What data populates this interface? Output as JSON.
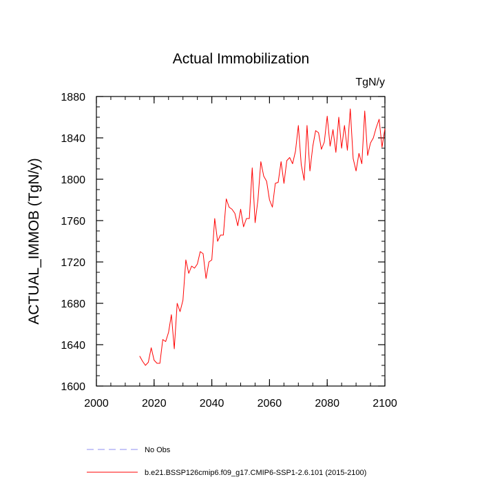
{
  "chart_data": {
    "type": "line",
    "title": "Actual Immobilization",
    "units_label": "TgN/y",
    "xlabel": "",
    "ylabel": "ACTUAL_IMMOB  (TgN/y)",
    "xlim": [
      2000,
      2100
    ],
    "ylim": [
      1600,
      1880
    ],
    "x_ticks": [
      2000,
      2020,
      2040,
      2060,
      2080,
      2100
    ],
    "y_ticks": [
      1600,
      1640,
      1680,
      1720,
      1760,
      1800,
      1840,
      1880
    ],
    "x_minor_step": 5,
    "y_minor_step": 10,
    "grid": false,
    "legend_position": "bottom-left",
    "series": [
      {
        "name": "b.e21.BSSP126cmip6.f09_g17.CMIP6-SSP1-2.6.101 (2015-2100)",
        "color": "#ff0000",
        "dash": "solid",
        "x": [
          2015,
          2016,
          2017,
          2018,
          2019,
          2020,
          2021,
          2022,
          2023,
          2024,
          2025,
          2026,
          2027,
          2028,
          2029,
          2030,
          2031,
          2032,
          2033,
          2034,
          2035,
          2036,
          2037,
          2038,
          2039,
          2040,
          2041,
          2042,
          2043,
          2044,
          2045,
          2046,
          2047,
          2048,
          2049,
          2050,
          2051,
          2052,
          2053,
          2054,
          2055,
          2056,
          2057,
          2058,
          2059,
          2060,
          2061,
          2062,
          2063,
          2064,
          2065,
          2066,
          2067,
          2068,
          2069,
          2070,
          2071,
          2072,
          2073,
          2074,
          2075,
          2076,
          2077,
          2078,
          2079,
          2080,
          2081,
          2082,
          2083,
          2084,
          2085,
          2086,
          2087,
          2088,
          2089,
          2090,
          2091,
          2092,
          2093,
          2094,
          2095,
          2096,
          2097,
          2098,
          2099,
          2100
        ],
        "values": [
          1629,
          1624,
          1620,
          1623,
          1637,
          1625,
          1622,
          1622,
          1645,
          1643,
          1652,
          1669,
          1636,
          1680,
          1672,
          1683,
          1722,
          1709,
          1716,
          1714,
          1718,
          1730,
          1728,
          1704,
          1720,
          1722,
          1762,
          1740,
          1746,
          1746,
          1781,
          1773,
          1771,
          1767,
          1755,
          1771,
          1754,
          1762,
          1762,
          1811,
          1758,
          1780,
          1817,
          1803,
          1798,
          1780,
          1773,
          1796,
          1797,
          1817,
          1796,
          1818,
          1821,
          1815,
          1827,
          1852,
          1814,
          1799,
          1852,
          1808,
          1832,
          1847,
          1845,
          1829,
          1836,
          1861,
          1832,
          1848,
          1826,
          1860,
          1830,
          1852,
          1828,
          1868,
          1820,
          1808,
          1825,
          1815,
          1866,
          1823,
          1835,
          1840,
          1850,
          1858,
          1831,
          1849
        ]
      },
      {
        "name": "No Obs",
        "color": "#8c8cf0",
        "dash": "dashed",
        "x": [],
        "values": []
      }
    ]
  }
}
